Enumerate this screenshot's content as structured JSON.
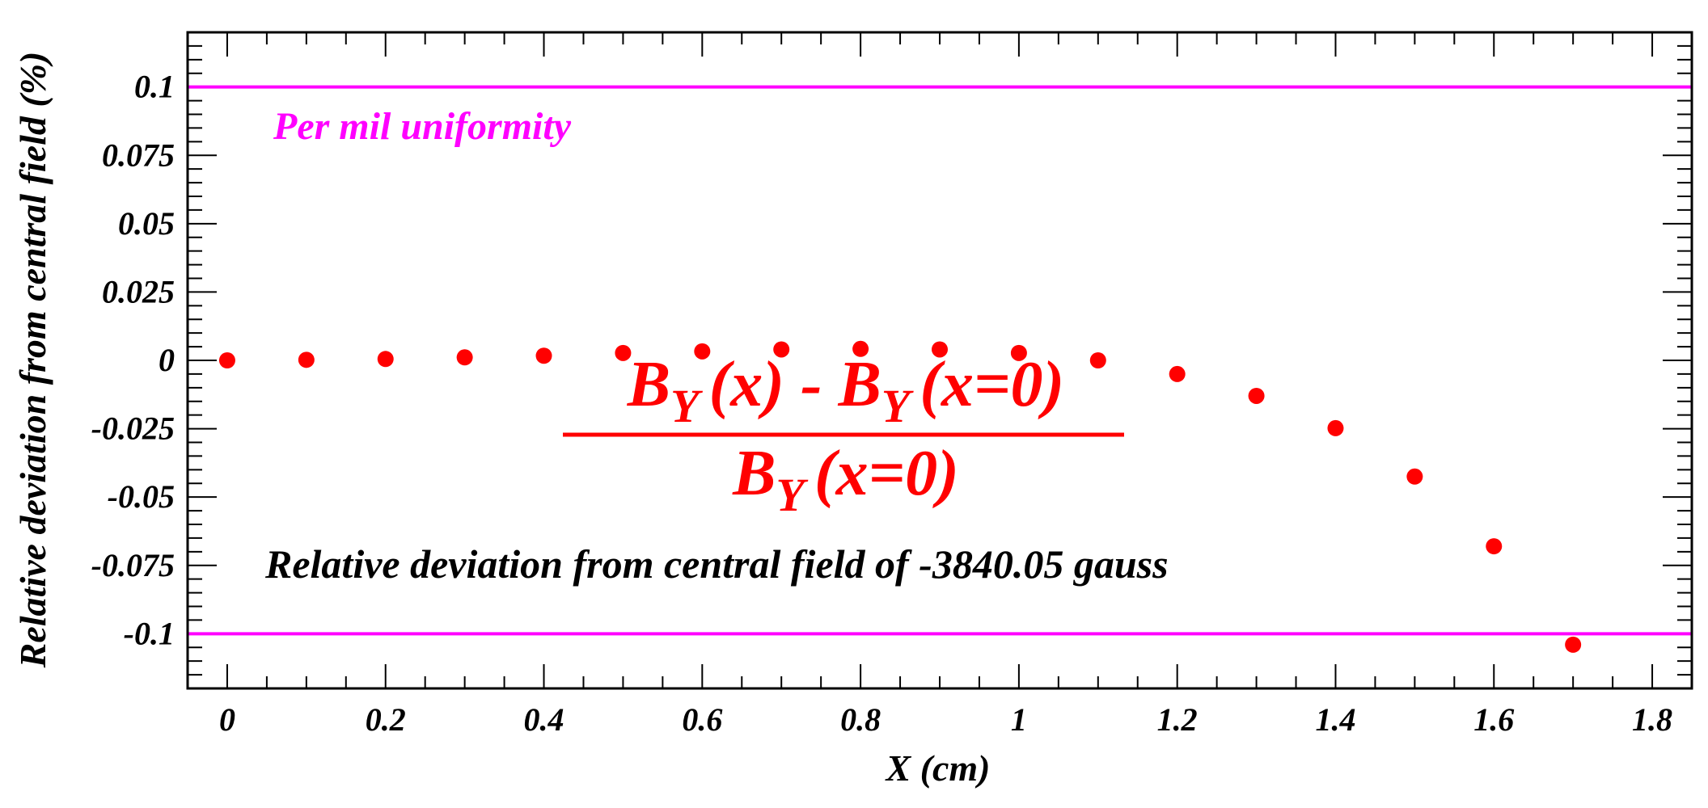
{
  "chart_data": {
    "type": "scatter",
    "xlabel": "X (cm)",
    "ylabel": "Relative deviation from central field (%)",
    "xlim": [
      -0.05,
      1.85
    ],
    "ylim": [
      -0.12,
      0.12
    ],
    "x_ticks": [
      {
        "value": 0,
        "label": "0"
      },
      {
        "value": 0.2,
        "label": "0.2"
      },
      {
        "value": 0.4,
        "label": "0.4"
      },
      {
        "value": 0.6,
        "label": "0.6"
      },
      {
        "value": 0.8,
        "label": "0.8"
      },
      {
        "value": 1,
        "label": "1"
      },
      {
        "value": 1.2,
        "label": "1.2"
      },
      {
        "value": 1.4,
        "label": "1.4"
      },
      {
        "value": 1.6,
        "label": "1.6"
      },
      {
        "value": 1.8,
        "label": "1.8"
      }
    ],
    "y_ticks": [
      {
        "value": 0.1,
        "label": "0.1"
      },
      {
        "value": 0.075,
        "label": "0.075"
      },
      {
        "value": 0.05,
        "label": "0.05"
      },
      {
        "value": 0.025,
        "label": "0.025"
      },
      {
        "value": 0,
        "label": "0"
      },
      {
        "value": -0.025,
        "label": "-0.025"
      },
      {
        "value": -0.05,
        "label": "-0.05"
      },
      {
        "value": -0.075,
        "label": "-0.075"
      },
      {
        "value": -0.1,
        "label": "-0.1"
      }
    ],
    "grid": false,
    "series": [
      {
        "color": "#ff0000",
        "points": [
          {
            "x": 0.0,
            "y": 0.0
          },
          {
            "x": 0.1,
            "y": 0.0002
          },
          {
            "x": 0.2,
            "y": 0.0005
          },
          {
            "x": 0.3,
            "y": 0.0011
          },
          {
            "x": 0.4,
            "y": 0.0017
          },
          {
            "x": 0.5,
            "y": 0.0027
          },
          {
            "x": 0.6,
            "y": 0.0033
          },
          {
            "x": 0.7,
            "y": 0.004
          },
          {
            "x": 0.8,
            "y": 0.0042
          },
          {
            "x": 0.9,
            "y": 0.004
          },
          {
            "x": 1.0,
            "y": 0.0027
          },
          {
            "x": 1.1,
            "y": 0.0
          },
          {
            "x": 1.2,
            "y": -0.005
          },
          {
            "x": 1.3,
            "y": -0.013
          },
          {
            "x": 1.4,
            "y": -0.0248
          },
          {
            "x": 1.5,
            "y": -0.0425
          },
          {
            "x": 1.6,
            "y": -0.068
          },
          {
            "x": 1.7,
            "y": -0.104
          }
        ]
      }
    ],
    "reference_lines": [
      {
        "y": 0.1,
        "color": "#ff00ff"
      },
      {
        "y": -0.1,
        "color": "#ff00ff"
      }
    ],
    "annotations": {
      "uniformity_label": "Per mil uniformity",
      "uniformity_color": "#ff00ff",
      "formula_color": "#ff0000",
      "formula_numerator": {
        "b1": "B",
        "sub1": "Y",
        "arg1": "(x) - ",
        "b2": "B",
        "sub2": "Y",
        "arg2": "(x=0)"
      },
      "formula_denominator": {
        "b": "B",
        "sub": "Y",
        "arg": "(x=0)"
      },
      "central_field_note": "Relative deviation from central field of -3840.05 gauss"
    }
  }
}
